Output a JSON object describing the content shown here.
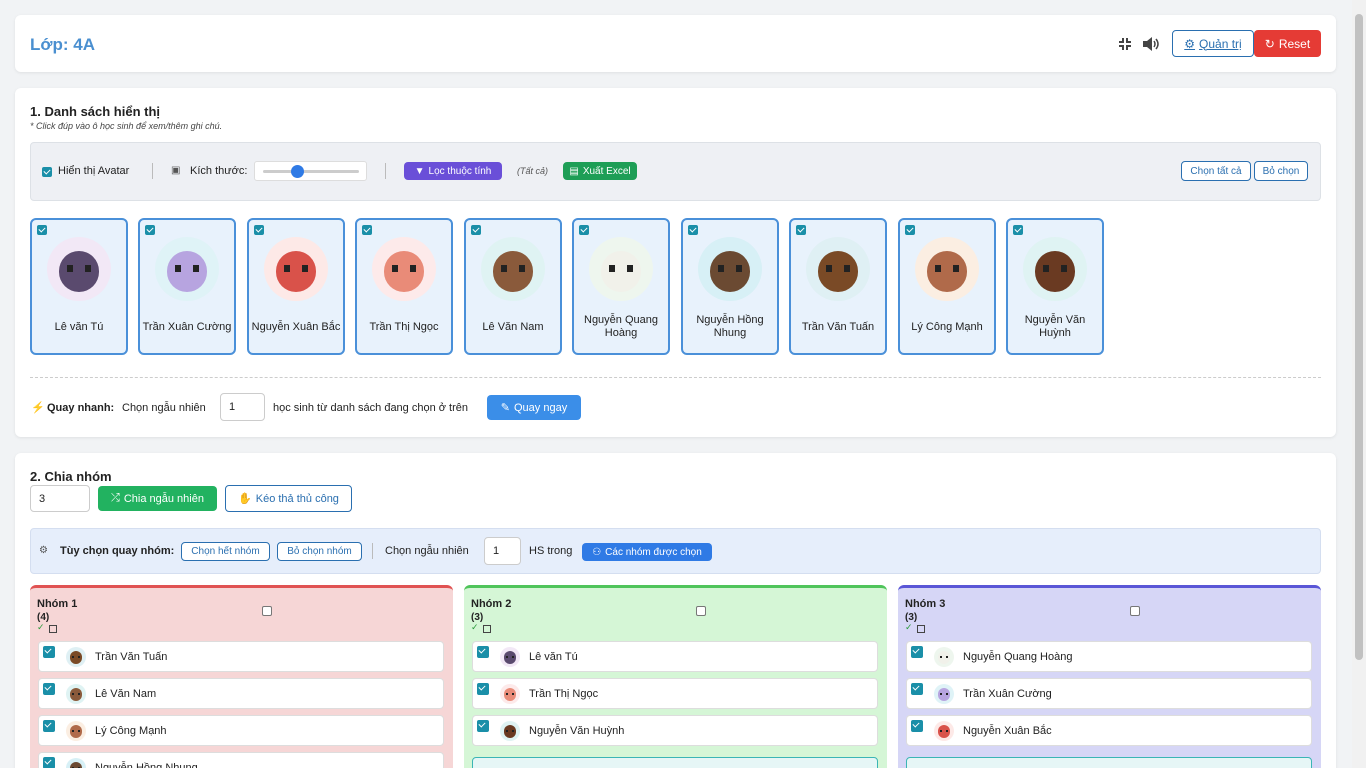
{
  "header": {
    "title": "Lớp: 4A",
    "admin": "Quản trị",
    "reset": "Reset"
  },
  "section1": {
    "title": "1. Danh sách hiển thị",
    "note": "* Click đúp vào ô học sinh để xem/thêm ghi chú.",
    "toolbar": {
      "show_avatar": "Hiển thị Avatar",
      "size": "Kích thước:",
      "filter": "Lọc thuộc tính",
      "filter_state": "(Tất cả)",
      "export": "Xuất Excel",
      "select_all": "Chọn tất cả",
      "deselect": "Bỏ chọn"
    },
    "students": [
      "Lê văn Tú",
      "Trần Xuân Cường",
      "Nguyễn Xuân Bắc",
      "Trần Thị Ngọc",
      "Lê Văn Nam",
      "Nguyễn Quang Hoàng",
      "Nguyễn Hồng Nhung",
      "Trần Văn Tuấn",
      "Lý Công Mạnh",
      "Nguyễn Văn Huỳnh"
    ],
    "quick": {
      "label": "Quay nhanh:",
      "pick": "Chọn ngẫu nhiên",
      "count": "1",
      "suffix": "học sinh từ danh sách đang chọn ở trên",
      "button": "Quay ngay"
    }
  },
  "section2": {
    "title": "2. Chia nhóm",
    "group_count": "3",
    "random": "Chia ngẫu nhiên",
    "manual": "Kéo thả thủ công",
    "options": {
      "label": "Tùy chọn quay nhóm:",
      "select_groups": "Chọn hết nhóm",
      "deselect_groups": "Bỏ chọn nhóm",
      "pick": "Chọn ngẫu nhiên",
      "count": "1",
      "in": "HS trong",
      "selected_groups": "Các nhóm được chọn"
    },
    "groups": [
      {
        "title": "Nhóm 1",
        "count": "(4)",
        "members": [
          "Trần Văn Tuấn",
          "Lê Văn Nam",
          "Lý Công Mạnh",
          "Nguyễn Hồng Nhung"
        ]
      },
      {
        "title": "Nhóm 2",
        "count": "(3)",
        "members": [
          "Lê văn Tú",
          "Trần Thị Ngọc",
          "Nguyễn Văn Huỳnh"
        ]
      },
      {
        "title": "Nhóm 3",
        "count": "(3)",
        "members": [
          "Nguyễn Quang Hoàng",
          "Trần Xuân Cường",
          "Nguyễn Xuân Bắc"
        ]
      }
    ]
  }
}
